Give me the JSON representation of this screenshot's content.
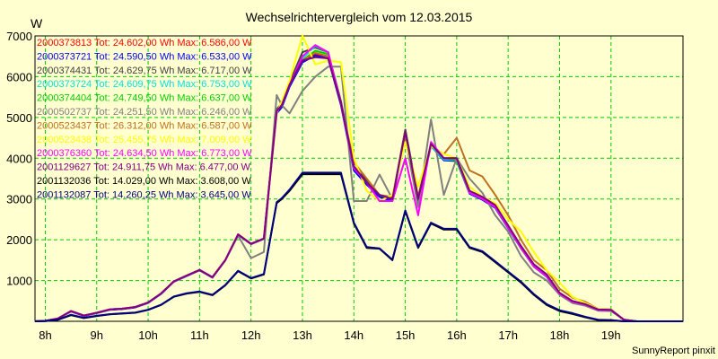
{
  "chart_data": {
    "type": "line",
    "title": "Wechselrichtervergleich vom 12.03.2015",
    "ylabel": "W",
    "xlabel": "",
    "footer": "SunnyReport pinxit",
    "grid": true,
    "legend_placement": "top-left",
    "xlim": [
      7.8,
      20.4
    ],
    "ylim": [
      0,
      7000
    ],
    "x_ticks": [
      {
        "value": 8,
        "label": "8h"
      },
      {
        "value": 9,
        "label": "9h"
      },
      {
        "value": 10,
        "label": "10h"
      },
      {
        "value": 11,
        "label": "11h"
      },
      {
        "value": 12,
        "label": "12h"
      },
      {
        "value": 13,
        "label": "13h"
      },
      {
        "value": 14,
        "label": "14h"
      },
      {
        "value": 15,
        "label": "15h"
      },
      {
        "value": 16,
        "label": "16h"
      },
      {
        "value": 17,
        "label": "17h"
      },
      {
        "value": 18,
        "label": "18h"
      },
      {
        "value": 19,
        "label": "19h"
      }
    ],
    "y_ticks": [
      {
        "value": 1000,
        "label": "1000"
      },
      {
        "value": 2000,
        "label": "2000"
      },
      {
        "value": 3000,
        "label": "3000"
      },
      {
        "value": 4000,
        "label": "4000"
      },
      {
        "value": 5000,
        "label": "5000"
      },
      {
        "value": 6000,
        "label": "6000"
      },
      {
        "value": 7000,
        "label": "7000"
      }
    ],
    "x": [
      7.8,
      8.0,
      8.25,
      8.5,
      8.75,
      9.0,
      9.25,
      9.5,
      9.75,
      10.0,
      10.25,
      10.5,
      10.75,
      11.0,
      11.25,
      11.5,
      11.75,
      12.0,
      12.25,
      12.5,
      12.6,
      12.75,
      13.0,
      13.25,
      13.5,
      13.75,
      14.0,
      14.25,
      14.5,
      14.75,
      15.0,
      15.25,
      15.5,
      15.75,
      16.0,
      16.25,
      16.5,
      16.75,
      17.0,
      17.25,
      17.5,
      17.75,
      18.0,
      18.25,
      18.5,
      18.75,
      19.0,
      19.25,
      19.5,
      19.75,
      20.0,
      20.4
    ],
    "series": [
      {
        "name": "2000373813",
        "legend": "2000373813 Tot: 24.602,00 Wh Max: 6.586,00 W",
        "color": "#ff0000",
        "values": [
          0,
          10,
          70,
          250,
          140,
          210,
          290,
          310,
          350,
          460,
          680,
          980,
          1120,
          1260,
          1080,
          1500,
          2130,
          1900,
          2030,
          5150,
          5300,
          5800,
          6400,
          6560,
          6500,
          5350,
          3760,
          3400,
          3100,
          3000,
          4700,
          3000,
          4350,
          3980,
          3950,
          3150,
          3000,
          2800,
          2300,
          1800,
          1350,
          1100,
          680,
          480,
          410,
          280,
          270,
          40,
          0,
          0,
          0,
          0
        ]
      },
      {
        "name": "2000373721",
        "legend": "2000373721 Tot: 24.590,50 Wh Max: 6.533,00 W",
        "color": "#0000ff",
        "values": [
          0,
          10,
          70,
          240,
          130,
          200,
          280,
          300,
          340,
          450,
          670,
          970,
          1110,
          1250,
          1070,
          1490,
          2120,
          1890,
          2020,
          5100,
          5250,
          5750,
          6350,
          6520,
          6450,
          5300,
          3700,
          3350,
          3050,
          2950,
          4600,
          2950,
          4300,
          3950,
          3930,
          3130,
          2980,
          2780,
          2280,
          1790,
          1340,
          1090,
          670,
          470,
          400,
          270,
          260,
          40,
          0,
          0,
          0,
          0
        ]
      },
      {
        "name": "2000374431",
        "legend": "2000374431 Tot: 24.629,75 Wh Max: 6.717,00 W",
        "color": "#404040",
        "values": [
          0,
          10,
          70,
          250,
          140,
          210,
          290,
          310,
          350,
          460,
          680,
          980,
          1120,
          1260,
          1080,
          1500,
          2130,
          1900,
          2030,
          5200,
          5350,
          5850,
          6600,
          6717,
          6600,
          5400,
          3800,
          3450,
          3100,
          3000,
          4700,
          3050,
          4350,
          4000,
          3950,
          3150,
          3000,
          2800,
          2300,
          1800,
          1350,
          1100,
          680,
          480,
          410,
          280,
          270,
          40,
          0,
          0,
          0,
          0
        ]
      },
      {
        "name": "2000373724",
        "legend": "2000373724 Tot: 24.609,75 Wh Max: 6.753,00 W",
        "color": "#00e0e0",
        "values": [
          0,
          10,
          70,
          250,
          140,
          210,
          290,
          310,
          350,
          460,
          680,
          980,
          1120,
          1260,
          1080,
          1500,
          2130,
          1900,
          2030,
          5150,
          5300,
          5800,
          6450,
          6753,
          6600,
          5350,
          3760,
          3400,
          3100,
          3000,
          4650,
          3000,
          4300,
          3970,
          3950,
          3150,
          3000,
          2800,
          2300,
          1800,
          1350,
          1100,
          680,
          480,
          410,
          280,
          270,
          40,
          0,
          0,
          0,
          0
        ]
      },
      {
        "name": "2000374404",
        "legend": "2000374404 Tot: 24.749,50 Wh Max: 6.637,00 W",
        "color": "#00d000",
        "values": [
          0,
          10,
          70,
          250,
          140,
          210,
          290,
          310,
          350,
          460,
          680,
          980,
          1120,
          1260,
          1080,
          1500,
          2130,
          1900,
          2030,
          5150,
          5300,
          5800,
          6400,
          6637,
          6550,
          5350,
          3760,
          3400,
          3100,
          3000,
          4650,
          3000,
          4350,
          4000,
          3950,
          3150,
          3000,
          2800,
          2300,
          1800,
          1350,
          1100,
          680,
          480,
          410,
          280,
          270,
          40,
          0,
          0,
          0,
          0
        ]
      },
      {
        "name": "2000502737",
        "legend": "2000502737 Tot: 24.251,50 Wh Max: 6.246,00 W",
        "color": "#808080",
        "values": [
          0,
          10,
          70,
          250,
          140,
          210,
          290,
          310,
          350,
          460,
          680,
          980,
          1120,
          1260,
          1080,
          1500,
          2100,
          1550,
          1700,
          5550,
          5300,
          5100,
          5650,
          6000,
          6246,
          6246,
          2950,
          2950,
          3600,
          3000,
          4500,
          2800,
          4950,
          3100,
          4000,
          3500,
          3150,
          2600,
          2200,
          1600,
          1200,
          1000,
          650,
          450,
          380,
          260,
          250,
          40,
          0,
          0,
          0,
          0
        ]
      },
      {
        "name": "2000523437",
        "legend": "2000523437 Tot: 26.312,00 Wh Max: 6.587,00 W",
        "color": "#c07020",
        "values": [
          0,
          10,
          70,
          250,
          140,
          210,
          290,
          310,
          350,
          460,
          680,
          980,
          1120,
          1260,
          1080,
          1500,
          2130,
          1900,
          2030,
          5150,
          5300,
          5800,
          6400,
          6587,
          6500,
          5350,
          3900,
          3500,
          3100,
          3050,
          4600,
          3050,
          4300,
          4100,
          4500,
          3700,
          3550,
          3100,
          2600,
          2000,
          1500,
          1250,
          800,
          580,
          480,
          300,
          290,
          40,
          0,
          0,
          0,
          0
        ]
      },
      {
        "name": "2000523438",
        "legend": "2000523438 Tot: 25.455,75 Wh Max: 7.009,00 W",
        "color": "#ffff00",
        "values": [
          0,
          10,
          70,
          250,
          140,
          210,
          290,
          310,
          350,
          460,
          680,
          980,
          1120,
          1260,
          1080,
          1500,
          2130,
          1900,
          2030,
          5100,
          5400,
          5900,
          7009,
          6300,
          6400,
          6350,
          4000,
          3200,
          2950,
          3100,
          4400,
          3300,
          4300,
          4100,
          4000,
          3300,
          3050,
          2900,
          2500,
          2200,
          1700,
          1250,
          950,
          600,
          450,
          300,
          280,
          40,
          0,
          0,
          0,
          0
        ]
      },
      {
        "name": "2000376360",
        "legend": "2000376360 Tot: 24.634,50 Wh Max: 6.773,00 W",
        "color": "#ff00ff",
        "values": [
          0,
          10,
          70,
          250,
          140,
          210,
          290,
          310,
          350,
          460,
          680,
          980,
          1120,
          1260,
          1080,
          1500,
          2130,
          1900,
          2030,
          5150,
          5300,
          5800,
          6500,
          6773,
          6600,
          5350,
          3750,
          3400,
          2950,
          2950,
          4000,
          2600,
          4400,
          4000,
          4000,
          3150,
          3000,
          2800,
          2300,
          1800,
          1350,
          1100,
          680,
          480,
          410,
          280,
          270,
          40,
          0,
          0,
          0,
          0
        ]
      },
      {
        "name": "2001129627",
        "legend": "2001129627 Tot: 24.911,75 Wh Max: 6.477,00 W",
        "color": "#800080",
        "values": [
          0,
          10,
          70,
          250,
          140,
          210,
          290,
          310,
          350,
          460,
          680,
          980,
          1120,
          1260,
          1080,
          1500,
          2130,
          1900,
          2030,
          5150,
          5300,
          5800,
          6400,
          6477,
          6450,
          5350,
          3800,
          3400,
          3100,
          3000,
          4650,
          3000,
          4350,
          4000,
          4000,
          3200,
          3050,
          2850,
          2350,
          1850,
          1400,
          1150,
          700,
          500,
          420,
          290,
          280,
          40,
          0,
          0,
          0,
          0
        ]
      },
      {
        "name": "2001132036",
        "legend": "2001132036 Tot: 14.029,00 Wh Max: 3.608,00 W",
        "color": "#000000",
        "values": [
          0,
          5,
          40,
          150,
          80,
          130,
          170,
          190,
          210,
          280,
          400,
          600,
          680,
          720,
          640,
          880,
          1230,
          1050,
          1150,
          2900,
          3000,
          3200,
          3608,
          3608,
          3608,
          3608,
          2400,
          1800,
          1780,
          1500,
          2700,
          1800,
          2400,
          2250,
          2250,
          1800,
          1700,
          1450,
          1200,
          950,
          650,
          400,
          250,
          180,
          100,
          30,
          20,
          0,
          0,
          0,
          0,
          0
        ]
      },
      {
        "name": "2001132087",
        "legend": "2001132087 Tot: 14.260,25 Wh Max: 3.645,00 W",
        "color": "#000080",
        "values": [
          0,
          5,
          40,
          160,
          85,
          135,
          175,
          195,
          215,
          285,
          405,
          610,
          690,
          730,
          650,
          890,
          1240,
          1060,
          1160,
          2920,
          3020,
          3230,
          3645,
          3645,
          3645,
          3645,
          2420,
          1820,
          1790,
          1510,
          2720,
          1820,
          2420,
          2270,
          2270,
          1820,
          1720,
          1470,
          1220,
          970,
          670,
          420,
          270,
          200,
          110,
          40,
          30,
          0,
          0,
          0,
          0,
          0
        ]
      }
    ]
  }
}
